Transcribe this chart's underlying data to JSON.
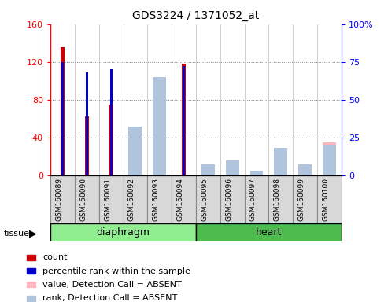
{
  "title": "GDS3224 / 1371052_at",
  "samples": [
    "GSM160089",
    "GSM160090",
    "GSM160091",
    "GSM160092",
    "GSM160093",
    "GSM160094",
    "GSM160095",
    "GSM160096",
    "GSM160097",
    "GSM160098",
    "GSM160099",
    "GSM160100"
  ],
  "count": [
    136,
    62,
    75,
    0,
    0,
    118,
    0,
    0,
    0,
    0,
    0,
    0
  ],
  "percentile": [
    75,
    68,
    70,
    0,
    0,
    72,
    0,
    0,
    0,
    0,
    0,
    0
  ],
  "absent_value": [
    0,
    0,
    0,
    40,
    100,
    0,
    10,
    14,
    0,
    20,
    9,
    35
  ],
  "absent_rank": [
    0,
    0,
    0,
    32,
    65,
    0,
    7,
    10,
    3,
    18,
    7,
    20
  ],
  "tissues": [
    {
      "label": "diaphragm",
      "start": 0,
      "end": 6,
      "color": "#90EE90"
    },
    {
      "label": "heart",
      "start": 6,
      "end": 12,
      "color": "#4dbb4d"
    }
  ],
  "ylim_left": [
    0,
    160
  ],
  "ylim_right": [
    0,
    100
  ],
  "yticks_left": [
    0,
    40,
    80,
    120,
    160
  ],
  "yticks_right": [
    0,
    25,
    50,
    75,
    100
  ],
  "color_count": "#cc0000",
  "color_percentile": "#0000cc",
  "color_absent_value": "#FFB6C1",
  "color_absent_rank": "#B0C4DE",
  "legend_items": [
    {
      "label": "count",
      "color": "#cc0000"
    },
    {
      "label": "percentile rank within the sample",
      "color": "#0000cc"
    },
    {
      "label": "value, Detection Call = ABSENT",
      "color": "#FFB6C1"
    },
    {
      "label": "rank, Detection Call = ABSENT",
      "color": "#B0C4DE"
    }
  ]
}
